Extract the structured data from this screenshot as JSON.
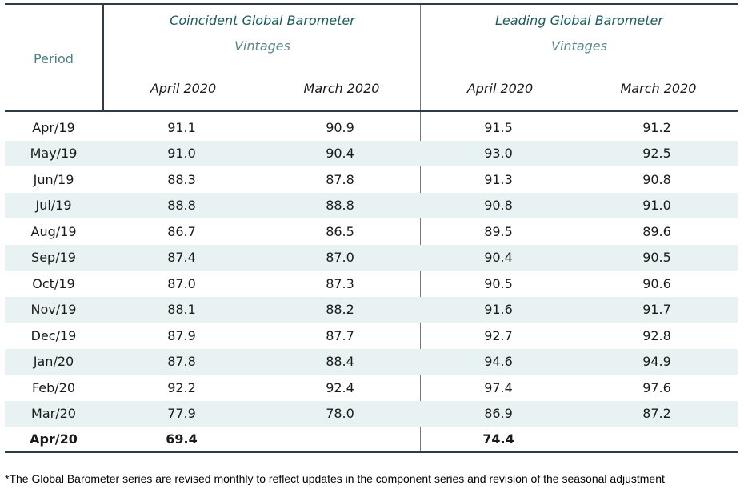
{
  "header": {
    "period_label": "Period",
    "coincident_title": "Coincident Global Barometer",
    "leading_title": "Leading Global Barometer",
    "vintages_label": "Vintages",
    "columns": [
      "April 2020",
      "March 2020",
      "April 2020",
      "March 2020"
    ]
  },
  "rows": [
    {
      "period": "Apr/19",
      "c1": "91.1",
      "c2": "90.9",
      "c3": "91.5",
      "c4": "91.2"
    },
    {
      "period": "May/19",
      "c1": "91.0",
      "c2": "90.4",
      "c3": "93.0",
      "c4": "92.5"
    },
    {
      "period": "Jun/19",
      "c1": "88.3",
      "c2": "87.8",
      "c3": "91.3",
      "c4": "90.8"
    },
    {
      "period": "Jul/19",
      "c1": "88.8",
      "c2": "88.8",
      "c3": "90.8",
      "c4": "91.0"
    },
    {
      "period": "Aug/19",
      "c1": "86.7",
      "c2": "86.5",
      "c3": "89.5",
      "c4": "89.6"
    },
    {
      "period": "Sep/19",
      "c1": "87.4",
      "c2": "87.0",
      "c3": "90.4",
      "c4": "90.5"
    },
    {
      "period": "Oct/19",
      "c1": "87.0",
      "c2": "87.3",
      "c3": "90.5",
      "c4": "90.6"
    },
    {
      "period": "Nov/19",
      "c1": "88.1",
      "c2": "88.2",
      "c3": "91.6",
      "c4": "91.7"
    },
    {
      "period": "Dec/19",
      "c1": "87.9",
      "c2": "87.7",
      "c3": "92.7",
      "c4": "92.8"
    },
    {
      "period": "Jan/20",
      "c1": "87.8",
      "c2": "88.4",
      "c3": "94.6",
      "c4": "94.9"
    },
    {
      "period": "Feb/20",
      "c1": "92.2",
      "c2": "92.4",
      "c3": "97.4",
      "c4": "97.6"
    },
    {
      "period": "Mar/20",
      "c1": "77.9",
      "c2": "78.0",
      "c3": "86.9",
      "c4": "87.2"
    },
    {
      "period": "Apr/20",
      "c1": "69.4",
      "c2": "",
      "c3": "74.4",
      "c4": ""
    }
  ],
  "footnote": "*The Global Barometer series are revised monthly to reflect updates in the component series and revision of the seasonal adjustment",
  "colors": {
    "title_teal": "#1e5a5e",
    "vintage_teal": "#5a8a8d",
    "row_shade": "#e8f2f2",
    "rule": "#2f3b46"
  }
}
